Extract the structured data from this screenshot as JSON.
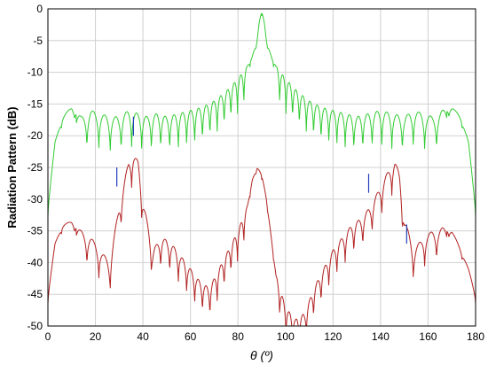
{
  "chart_data": {
    "type": "line",
    "xlabel": "θ (º)",
    "ylabel": "Radiation Pattern (dB)",
    "xlim": [
      0,
      180
    ],
    "ylim": [
      -50,
      0
    ],
    "xticks": [
      0,
      20,
      40,
      60,
      80,
      100,
      120,
      140,
      160,
      180
    ],
    "yticks": [
      0,
      -5,
      -10,
      -15,
      -20,
      -25,
      -30,
      -35,
      -40,
      -45,
      -50
    ],
    "grid": true,
    "colors": {
      "green": "#33cc33",
      "red": "#b22222",
      "blue": "#1f3fbf",
      "grid": "#d0d0d0"
    },
    "series": [
      {
        "color": "#33cc33",
        "description": "upper pattern (envelope points)",
        "x": [
          0,
          3,
          6,
          10,
          14,
          18,
          22,
          26,
          30,
          34,
          38,
          42,
          46,
          50,
          55,
          60,
          65,
          70,
          75,
          80,
          84,
          86,
          88,
          89,
          90,
          91,
          92,
          94,
          96,
          100,
          105,
          110,
          115,
          120,
          125,
          130,
          135,
          140,
          145,
          150,
          154,
          158,
          162,
          166,
          170,
          174,
          177,
          180
        ],
        "values": [
          -31,
          -21,
          -17,
          -15.5,
          -17,
          -16,
          -16.5,
          -17,
          -17,
          -16,
          -16.5,
          -17,
          -16.5,
          -17,
          -16.5,
          -16,
          -15.5,
          -14.5,
          -13,
          -11,
          -9,
          -7.5,
          -5,
          -2,
          0,
          -2,
          -5,
          -7.5,
          -9,
          -11,
          -13,
          -14.5,
          -15.5,
          -16,
          -16.5,
          -17,
          -16.5,
          -16,
          -16.5,
          -17,
          -16,
          -16.5,
          -17,
          -16,
          -15.5,
          -17,
          -21,
          -31
        ]
      },
      {
        "color": "#b22222",
        "description": "lower pattern (envelope points)",
        "x": [
          0,
          3,
          6,
          10,
          14,
          18,
          22,
          26,
          30,
          34,
          36,
          38,
          40,
          44,
          48,
          52,
          56,
          60,
          64,
          68,
          72,
          76,
          80,
          84,
          86,
          88,
          90,
          92,
          94,
          96,
          100,
          104,
          108,
          112,
          116,
          120,
          124,
          128,
          132,
          136,
          140,
          144,
          146,
          148,
          150,
          154,
          158,
          162,
          166,
          170,
          174,
          177,
          180
        ],
        "values": [
          -45,
          -37,
          -34,
          -33.5,
          -35,
          -36,
          -38,
          -40,
          -31,
          -24,
          -23,
          -24,
          -30,
          -38,
          -36,
          -37,
          -39,
          -41,
          -43,
          -44,
          -41,
          -38,
          -35,
          -31,
          -27,
          -25,
          -26,
          -30,
          -36,
          -42,
          -47,
          -49,
          -48,
          -44,
          -41,
          -38,
          -36,
          -34,
          -33,
          -31,
          -28,
          -25,
          -24,
          -26,
          -33,
          -38,
          -36,
          -35,
          -34.5,
          -35,
          -38,
          -41,
          -45
        ]
      }
    ]
  }
}
